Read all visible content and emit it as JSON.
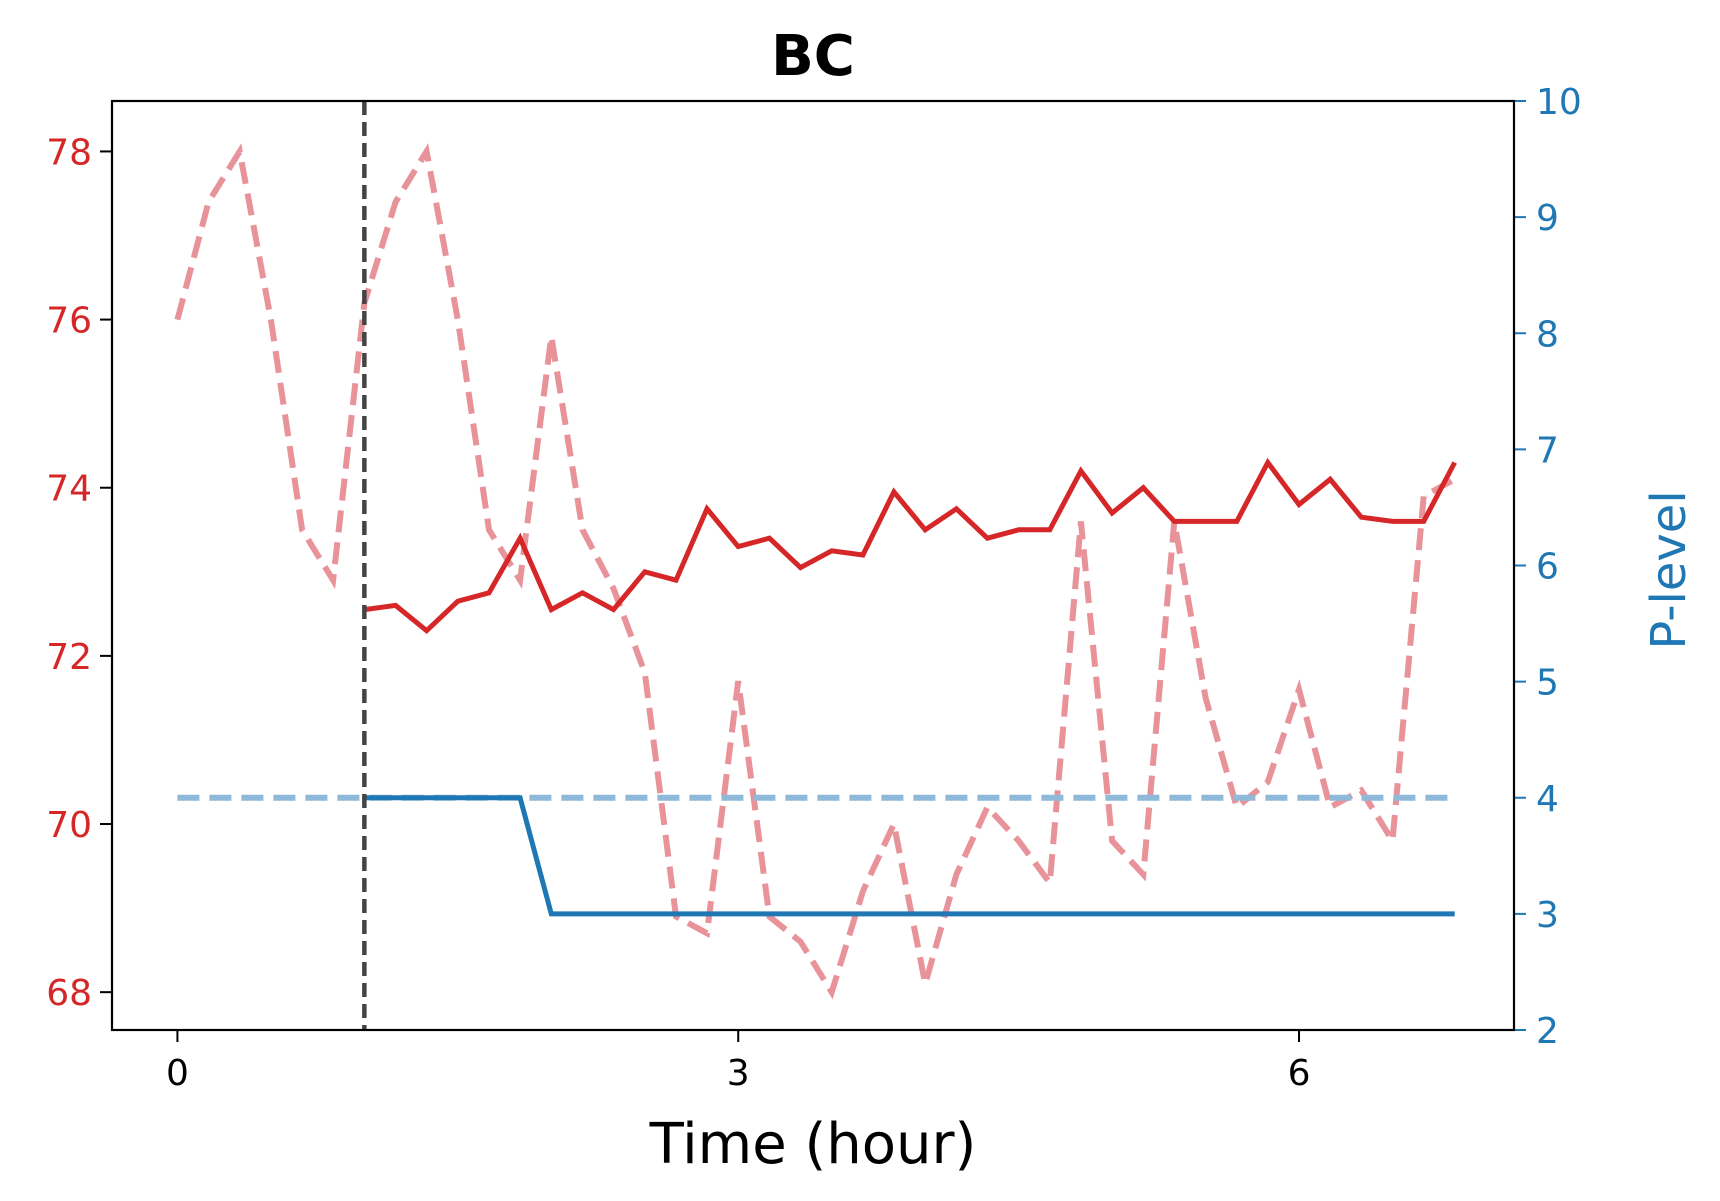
{
  "chart_data": {
    "type": "line",
    "title": "BC",
    "xlabel": "Time (hour)",
    "ylabel_left": "",
    "ylabel_right": "P-level",
    "xlim": [
      -0.35,
      7.15
    ],
    "ylim_left": [
      67.55,
      78.6
    ],
    "ylim_right": [
      2,
      10
    ],
    "xticks": [
      0,
      3,
      6
    ],
    "yticks_left": [
      68,
      70,
      72,
      74,
      76,
      78
    ],
    "yticks_right": [
      2,
      3,
      4,
      5,
      6,
      7,
      8,
      9,
      10
    ],
    "left_axis_color": "#d62728",
    "right_axis_color": "#1f77b4",
    "vline": {
      "x": 1.0,
      "color": "#444444",
      "style": "dashed"
    },
    "grid": false,
    "series": [
      {
        "axis": "left",
        "color": "#e8939a",
        "style": "dashed",
        "x": [
          0,
          0.167,
          0.333,
          0.5,
          0.667,
          0.833,
          1.0,
          1.167,
          1.333,
          1.5,
          1.667,
          1.833,
          2.0,
          2.167,
          2.333,
          2.5,
          2.667,
          2.833,
          3.0,
          3.167,
          3.333,
          3.5,
          3.667,
          3.833,
          4.0,
          4.167,
          4.333,
          4.5,
          4.667,
          4.833,
          5.0,
          5.167,
          5.333,
          5.5,
          5.667,
          5.833,
          6.0,
          6.167,
          6.333,
          6.5,
          6.667,
          6.833
        ],
        "values": [
          76.0,
          77.4,
          78.0,
          76.0,
          73.5,
          72.9,
          76.2,
          77.4,
          78.0,
          76.0,
          73.5,
          72.9,
          75.8,
          73.5,
          72.8,
          71.8,
          68.9,
          68.7,
          71.7,
          68.9,
          68.6,
          68.0,
          69.2,
          70.0,
          68.1,
          69.4,
          70.2,
          69.8,
          69.3,
          73.6,
          69.8,
          69.4,
          73.6,
          71.5,
          70.2,
          70.5,
          71.6,
          70.2,
          70.4,
          69.8,
          73.9,
          74.1
        ]
      },
      {
        "axis": "left",
        "color": "#d62728",
        "style": "solid",
        "x": [
          1.0,
          1.167,
          1.333,
          1.5,
          1.667,
          1.833,
          2.0,
          2.167,
          2.333,
          2.5,
          2.667,
          2.833,
          3.0,
          3.167,
          3.333,
          3.5,
          3.667,
          3.833,
          4.0,
          4.167,
          4.333,
          4.5,
          4.667,
          4.833,
          5.0,
          5.167,
          5.333,
          5.5,
          5.667,
          5.833,
          6.0,
          6.167,
          6.333,
          6.5,
          6.667,
          6.833
        ],
        "values": [
          72.55,
          72.6,
          72.3,
          72.65,
          72.75,
          73.4,
          72.55,
          72.75,
          72.55,
          73.0,
          72.9,
          73.75,
          73.3,
          73.4,
          73.05,
          73.25,
          73.2,
          73.95,
          73.5,
          73.75,
          73.4,
          73.5,
          73.5,
          74.2,
          73.7,
          74.0,
          73.6,
          73.6,
          73.6,
          74.3,
          73.8,
          74.1,
          73.65,
          73.6,
          73.6,
          74.3
        ]
      },
      {
        "axis": "right",
        "color": "#8fb9d9",
        "style": "dashed",
        "x": [
          0,
          6.833
        ],
        "values": [
          4,
          4
        ]
      },
      {
        "axis": "right",
        "color": "#1f77b4",
        "style": "solid",
        "x": [
          1.0,
          1.833,
          2.0,
          6.833
        ],
        "values": [
          4,
          4,
          3,
          3
        ]
      }
    ]
  }
}
